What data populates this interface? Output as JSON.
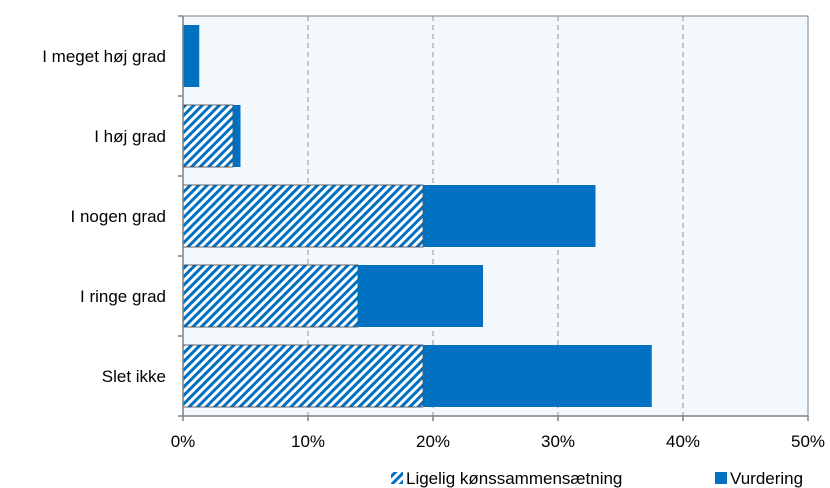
{
  "chart_data": {
    "type": "bar",
    "orientation": "horizontal",
    "stacked": true,
    "categories": [
      "I meget høj grad",
      "I høj grad",
      "I nogen grad",
      "I ringe grad",
      "Slet ikke"
    ],
    "series": [
      {
        "name": "Ligelig kønssammensætning",
        "values": [
          0,
          4.0,
          19.2,
          14.0,
          19.2
        ],
        "color": "#0070C0",
        "pattern": "diagonal-hatch"
      },
      {
        "name": "Vurdering",
        "values": [
          1.3,
          0.6,
          13.8,
          10.0,
          18.3
        ],
        "color": "#0070C0",
        "pattern": "solid"
      }
    ],
    "xlim": [
      0,
      50
    ],
    "x_ticks": [
      "0%",
      "10%",
      "20%",
      "30%",
      "40%",
      "50%"
    ],
    "grid": "vertical-dashed",
    "plot_background": "#F3F8FC",
    "legend_position": "bottom-right"
  }
}
